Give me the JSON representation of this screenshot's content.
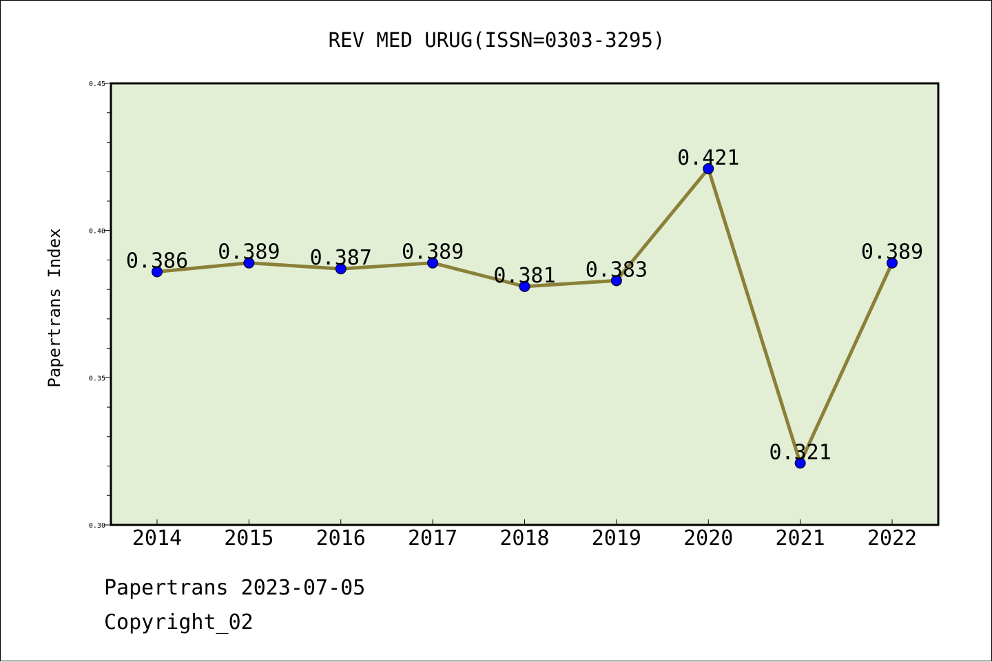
{
  "chart_data": {
    "type": "line",
    "title": "REV MED URUG(ISSN=0303-3295)",
    "xlabel": "",
    "ylabel": "Papertrans Index",
    "categories": [
      "2014",
      "2015",
      "2016",
      "2017",
      "2018",
      "2019",
      "2020",
      "2021",
      "2022"
    ],
    "series": [
      {
        "values": [
          0.386,
          0.389,
          0.387,
          0.389,
          0.381,
          0.383,
          0.421,
          0.321,
          0.389
        ],
        "labels": [
          "0.386",
          "0.389",
          "0.387",
          "0.389",
          "0.381",
          "0.383",
          "0.421",
          "0.321",
          "0.389"
        ]
      }
    ],
    "ylim": [
      0.3,
      0.45
    ],
    "yticks": [
      "0.30",
      "0.35",
      "0.40",
      "0.45"
    ],
    "grid": false,
    "colors": {
      "plot_background": "#e2efd5",
      "line": "#8b8038",
      "marker": "#0000ff"
    }
  },
  "footer": {
    "date_line": "Papertrans 2023-07-05",
    "copyright": "Copyright_02"
  }
}
